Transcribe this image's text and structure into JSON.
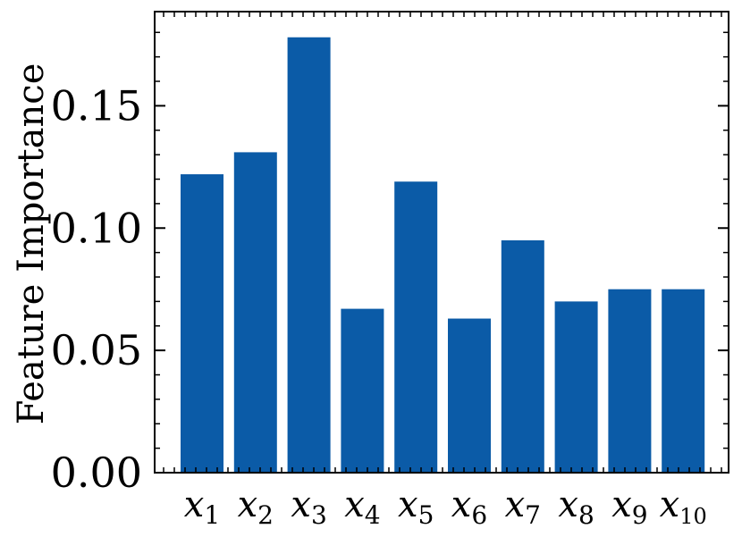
{
  "chart_data": {
    "type": "bar",
    "title": "",
    "xlabel": "",
    "ylabel": "Feature Importance",
    "categories": [
      {
        "base": "x",
        "sub": "1"
      },
      {
        "base": "x",
        "sub": "2"
      },
      {
        "base": "x",
        "sub": "3"
      },
      {
        "base": "x",
        "sub": "4"
      },
      {
        "base": "x",
        "sub": "5"
      },
      {
        "base": "x",
        "sub": "6"
      },
      {
        "base": "x",
        "sub": "7"
      },
      {
        "base": "x",
        "sub": "8"
      },
      {
        "base": "x",
        "sub": "9"
      },
      {
        "base": "x",
        "sub": "10"
      }
    ],
    "values": [
      0.122,
      0.131,
      0.178,
      0.067,
      0.119,
      0.063,
      0.095,
      0.07,
      0.075,
      0.075
    ],
    "ylim": [
      0.0,
      0.1885
    ],
    "yticks": [
      0.0,
      0.05,
      0.1,
      0.15
    ],
    "ytick_labels": [
      "0.00",
      "0.05",
      "0.10",
      "0.15"
    ],
    "bar_color": "#0b5ba7",
    "grid": false,
    "legend": "none"
  }
}
